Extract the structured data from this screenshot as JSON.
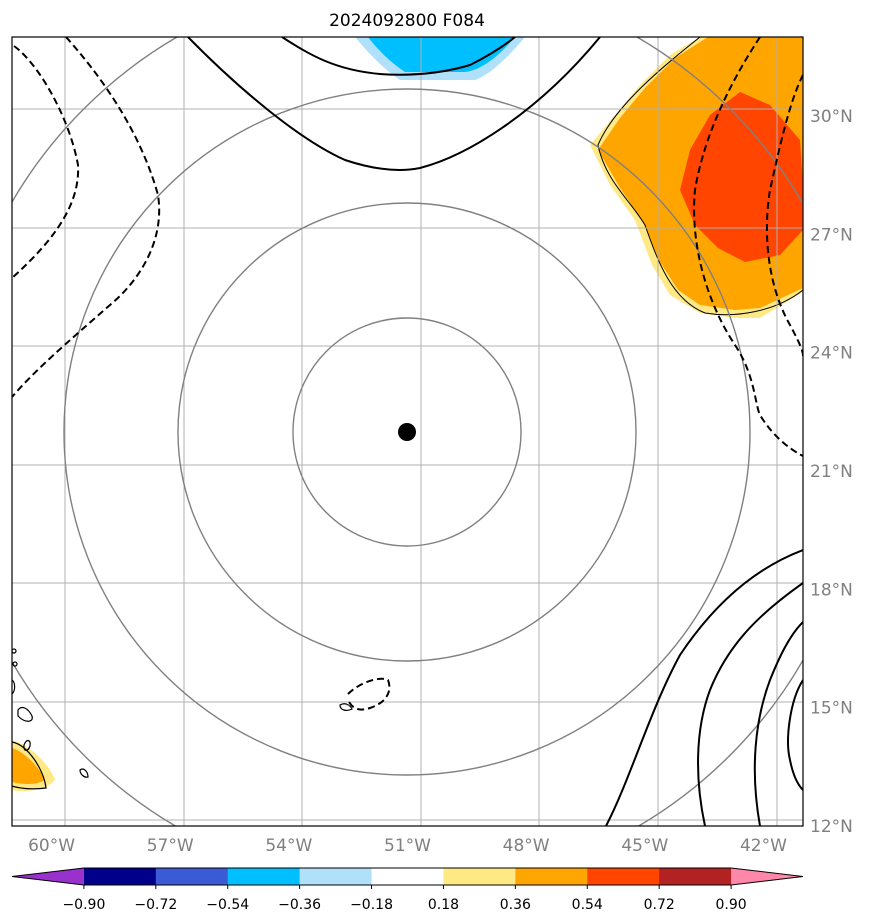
{
  "title": "2024092800 F084",
  "map": {
    "lon_range": [
      -61,
      -41
    ],
    "lat_range": [
      12,
      32
    ],
    "lon_ticks": [
      {
        "value": -60,
        "label": "60°W"
      },
      {
        "value": -57,
        "label": "57°W"
      },
      {
        "value": -54,
        "label": "54°W"
      },
      {
        "value": -51,
        "label": "51°W"
      },
      {
        "value": -48,
        "label": "48°W"
      },
      {
        "value": -45,
        "label": "45°W"
      },
      {
        "value": -42,
        "label": "42°W"
      }
    ],
    "lat_ticks": [
      {
        "value": 12,
        "label": "12°N"
      },
      {
        "value": 15,
        "label": "15°N"
      },
      {
        "value": 18,
        "label": "18°N"
      },
      {
        "value": 21,
        "label": "21°N"
      },
      {
        "value": 24,
        "label": "24°N"
      },
      {
        "value": 27,
        "label": "27°N"
      },
      {
        "value": 30,
        "label": "30°N"
      }
    ],
    "grid": true,
    "center_marker": {
      "lon": -51.3,
      "lat": 21.8
    },
    "range_rings_count": 4
  },
  "colorbar": {
    "colors": [
      "#9932cc",
      "#00008b",
      "#3a5bd4",
      "#00bfff",
      "#b0e0fa",
      "#ffffff",
      "#ffe985",
      "#ffa500",
      "#ff4500",
      "#b22222",
      "#ff88aa"
    ],
    "labels": [
      "−0.90",
      "−0.72",
      "−0.54",
      "−0.36",
      "−0.18",
      "0.18",
      "0.36",
      "0.54",
      "0.72",
      "0.90"
    ],
    "extend": "both"
  }
}
